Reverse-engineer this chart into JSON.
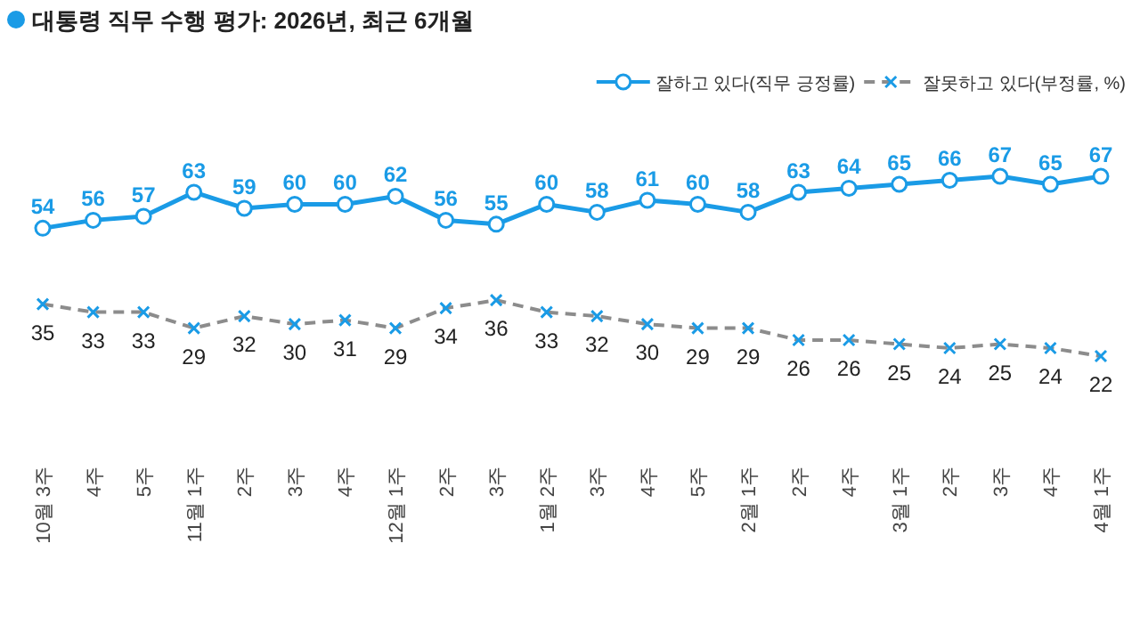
{
  "chart_data": {
    "type": "line",
    "title": "대통령 직무 수행 평가: 2026년, 최근 6개월",
    "categories": [
      "10월 3주",
      "4주",
      "5주",
      "11월 1주",
      "2주",
      "3주",
      "4주",
      "12월 1주",
      "2주",
      "3주",
      "1월 2주",
      "3주",
      "4주",
      "5주",
      "2월 1주",
      "2주",
      "4주",
      "3월 1주",
      "2주",
      "3주",
      "4주",
      "4월 1주"
    ],
    "series": [
      {
        "name": "잘하고 있다(직무 긍정률)",
        "color": "#1a9be6",
        "marker": "circle",
        "line_style": "solid",
        "values": [
          54,
          56,
          57,
          63,
          59,
          60,
          60,
          62,
          56,
          55,
          60,
          58,
          61,
          60,
          58,
          63,
          64,
          65,
          66,
          67,
          65,
          67
        ]
      },
      {
        "name": "잘못하고 있다(부정률, %)",
        "color": "#8c8c8c",
        "marker": "cross",
        "line_style": "dashed",
        "values": [
          35,
          33,
          33,
          29,
          32,
          30,
          31,
          29,
          34,
          36,
          33,
          32,
          30,
          29,
          29,
          26,
          26,
          25,
          24,
          25,
          24,
          22
        ]
      }
    ],
    "data_labels": true,
    "legend": "top right",
    "grid": false,
    "tick_labels": "x"
  }
}
